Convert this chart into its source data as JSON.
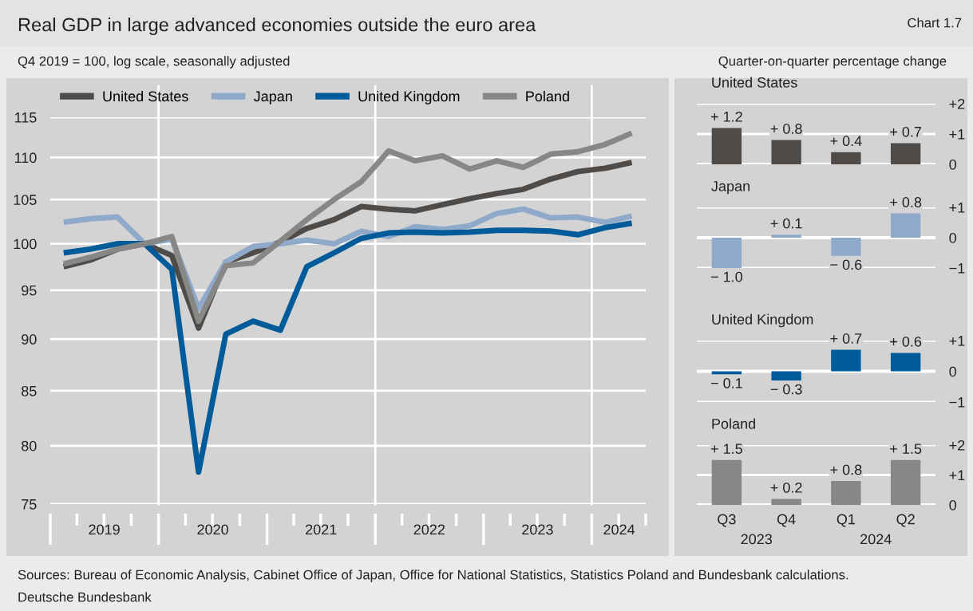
{
  "chart_data": [
    {
      "type": "line",
      "title": "Real GDP in large advanced economies outside the euro area",
      "subtitle": "Q4 2019 = 100, log scale, seasonally adjusted",
      "x": [
        "2019-02-15",
        "2019-05-15",
        "2019-08-15",
        "2019-11-15",
        "2020-02-15",
        "2020-05-15",
        "2020-08-15",
        "2020-11-15",
        "2021-02-15",
        "2021-05-15",
        "2021-08-15",
        "2021-11-15",
        "2022-02-15",
        "2022-05-15",
        "2022-08-15",
        "2022-11-15",
        "2023-02-15",
        "2023-05-15",
        "2023-08-15",
        "2023-11-15",
        "2024-02-15",
        "2024-05-15"
      ],
      "series": [
        {
          "name": "United States",
          "color": "#4f4b49",
          "values": [
            97.5,
            98.2,
            99.4,
            100,
            98.7,
            91.1,
            98.0,
            99.0,
            100.2,
            101.7,
            102.7,
            104.2,
            103.9,
            103.7,
            104.4,
            105.1,
            105.7,
            106.2,
            107.4,
            108.3,
            108.7,
            109.4
          ]
        },
        {
          "name": "Japan",
          "color": "#8fa9cb",
          "values": [
            102.4,
            102.8,
            103.0,
            100,
            100.5,
            93.1,
            98.0,
            99.7,
            100.0,
            100.4,
            100.0,
            101.4,
            100.8,
            101.9,
            101.6,
            102.0,
            103.4,
            103.9,
            102.9,
            103.0,
            102.4,
            103.1
          ]
        },
        {
          "name": "United Kingdom",
          "color": "#005b9a",
          "values": [
            99.0,
            99.4,
            100.0,
            100,
            97.2,
            77.7,
            90.5,
            91.8,
            90.9,
            97.5,
            99.0,
            100.6,
            101.2,
            101.3,
            101.2,
            101.3,
            101.5,
            101.5,
            101.4,
            101.0,
            101.8,
            102.3
          ]
        },
        {
          "name": "Poland",
          "color": "#878786",
          "values": [
            97.8,
            98.5,
            99.4,
            100,
            100.8,
            91.8,
            97.6,
            97.9,
            100.3,
            102.7,
            105.0,
            107.1,
            110.8,
            109.6,
            110.2,
            108.6,
            109.6,
            108.8,
            110.4,
            110.7,
            111.6,
            113.0
          ]
        }
      ],
      "log": true,
      "ylim": [
        75,
        115
      ],
      "yticks": [
        75,
        80,
        85,
        90,
        95,
        100,
        105,
        110,
        115
      ],
      "xlim": [
        "2019-01-01",
        "2024-07-01"
      ],
      "xticks": [
        {
          "value": "2019-07-02",
          "label": "2019"
        },
        {
          "value": "2020-07-02",
          "label": "2020"
        },
        {
          "value": "2021-07-02",
          "label": "2021"
        },
        {
          "value": "2022-07-02",
          "label": "2022"
        },
        {
          "value": "2023-07-02",
          "label": "2023"
        },
        {
          "value": "2024-04-02",
          "label": "2024"
        }
      ],
      "grid": "y",
      "legend": "top left",
      "ref_lines": [
        {
          "axis": "x",
          "value": "2020-01-01",
          "color": "#ffffff"
        },
        {
          "axis": "x",
          "value": "2022-01-01",
          "color": "#ffffff"
        },
        {
          "axis": "x",
          "value": "2024-01-01",
          "color": "#ffffff"
        }
      ],
      "annotations": [
        "Chart 1.7",
        "Sources: Bureau of Economic Analysis, Cabinet Office of Japan, Office for National Statistics, Statistics Poland and Bundesbank calculations.",
        "Deutsche Bundesbank"
      ]
    },
    {
      "type": "bar",
      "title": "United States",
      "subtitle": "Quarter-on-quarter percentage change",
      "categories": [
        null,
        null,
        null,
        null
      ],
      "values": [
        1.2,
        0.8,
        0.4,
        0.7
      ],
      "color": "#4f4b49",
      "value_labels": [
        "+ 1.2",
        "+ 0.8",
        "+ 0.4",
        "+ 0.7"
      ],
      "ylim": [
        0,
        2
      ],
      "yticks": [
        0,
        {
          "value": 1,
          "label": "+1"
        },
        {
          "value": 2,
          "label": "+2"
        }
      ],
      "grid": "y",
      "tick_labels": "y"
    },
    {
      "type": "bar",
      "title": "Japan",
      "categories": [
        null,
        null,
        null,
        null
      ],
      "values": [
        -1.0,
        0.1,
        -0.6,
        0.8
      ],
      "color": "#8fa9cb",
      "value_labels": [
        "− 1.0",
        "+ 0.1",
        "− 0.6",
        "+ 0.8"
      ],
      "ylim": [
        -1,
        1
      ],
      "yticks": [
        {
          "value": -1,
          "label": "−1"
        },
        0,
        {
          "value": 1,
          "label": "+1"
        }
      ],
      "grid": "y",
      "tick_labels": "y"
    },
    {
      "type": "bar",
      "title": "United Kingdom",
      "categories": [
        null,
        null,
        null,
        null
      ],
      "values": [
        -0.1,
        -0.3,
        0.7,
        0.6
      ],
      "color": "#005b9a",
      "value_labels": [
        "− 0.1",
        "− 0.3",
        "+ 0.7",
        "+ 0.6"
      ],
      "ylim": [
        -1,
        1
      ],
      "yticks": [
        {
          "value": -1,
          "label": "−1"
        },
        0,
        {
          "value": 1,
          "label": "+1"
        }
      ],
      "grid": "y",
      "tick_labels": "y"
    },
    {
      "type": "bar",
      "title": "Poland",
      "categories": [
        "Q3",
        "Q4",
        "Q1",
        "Q2"
      ],
      "values": [
        1.5,
        0.2,
        0.8,
        1.5
      ],
      "color": "#878786",
      "value_labels": [
        "+ 1.5",
        "+ 0.2",
        "+ 0.8",
        "+ 1.5"
      ],
      "ylim": [
        0,
        2
      ],
      "yticks": [
        0,
        {
          "value": 1,
          "label": "+1"
        },
        {
          "value": 2,
          "label": "+2"
        }
      ],
      "grid": "y",
      "annotations": [
        "2023",
        "2024"
      ]
    }
  ]
}
